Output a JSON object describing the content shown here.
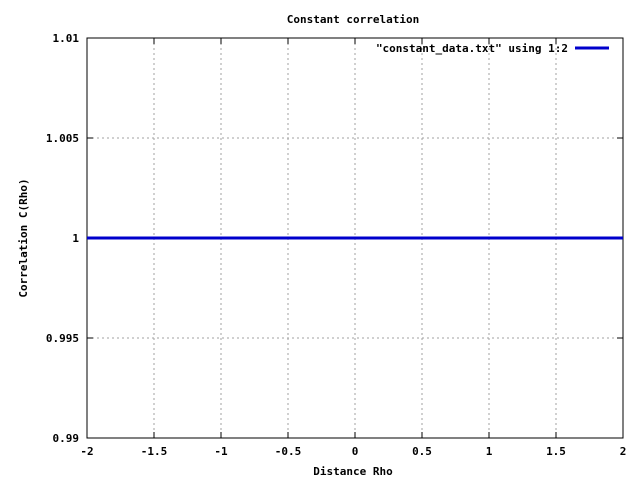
{
  "chart_data": {
    "type": "line",
    "title": "Constant correlation",
    "xlabel": "Distance Rho",
    "ylabel": "Correlation C(Rho)",
    "xlim": [
      -2,
      2
    ],
    "ylim": [
      0.99,
      1.01
    ],
    "x_ticks": [
      "-2",
      "-1.5",
      "-1",
      "-0.5",
      "0",
      "0.5",
      "1",
      "1.5",
      "2"
    ],
    "y_ticks": [
      "0.99",
      "0.995",
      "1",
      "1.005",
      "1.01"
    ],
    "grid": true,
    "legend_position": "top-right",
    "series": [
      {
        "name": "\"constant_data.txt\" using 1:2",
        "color": "#0000cc",
        "x": [
          -2,
          2
        ],
        "y": [
          1,
          1
        ]
      }
    ]
  }
}
